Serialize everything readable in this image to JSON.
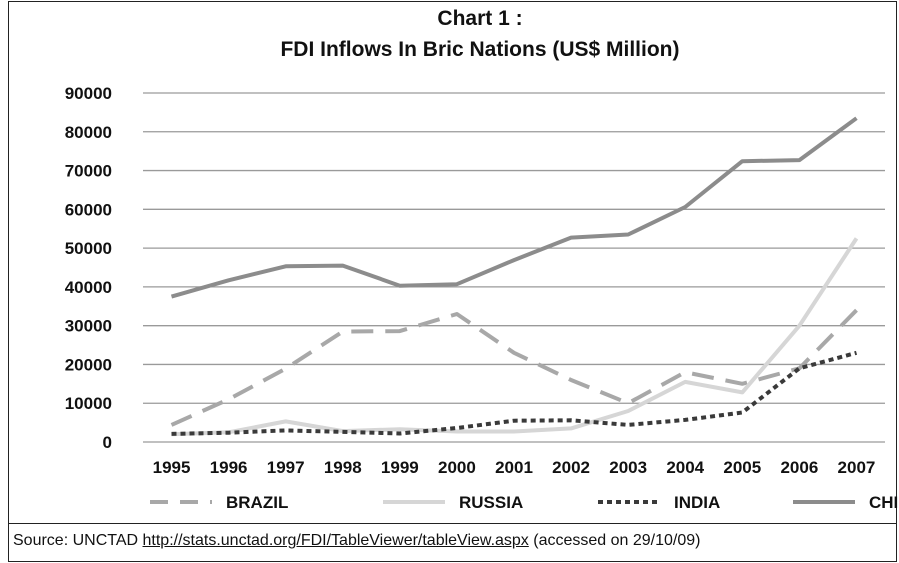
{
  "chart_data": {
    "type": "line",
    "title": [
      "Chart  1 :",
      "FDI Inflows In Bric Nations (US$ Million)"
    ],
    "x": [
      "1995",
      "1996",
      "1997",
      "1998",
      "1999",
      "2000",
      "2001",
      "2002",
      "2003",
      "2004",
      "2005",
      "2006",
      "2007"
    ],
    "ylim": [
      0,
      90000
    ],
    "yticks": [
      "0",
      "10000",
      "20000",
      "30000",
      "40000",
      "50000",
      "60000",
      "70000",
      "80000",
      "90000"
    ],
    "grid": true,
    "legend_position": "bottom",
    "series": [
      {
        "name": "BRAZIL",
        "color": "#a8a8a8",
        "style": "dashed",
        "values": [
          4400,
          11000,
          18900,
          28500,
          28600,
          33000,
          23000,
          16000,
          10000,
          18000,
          15000,
          19000,
          34000
        ]
      },
      {
        "name": "RUSSIA",
        "color": "#d6d6d6",
        "style": "solid",
        "values": [
          2000,
          2500,
          5300,
          2800,
          3300,
          2700,
          2700,
          3500,
          8000,
          15500,
          12800,
          30000,
          52500
        ]
      },
      {
        "name": "INDIA",
        "color": "#3a3a3a",
        "style": "dotted",
        "values": [
          2100,
          2400,
          3000,
          2600,
          2200,
          3600,
          5500,
          5600,
          4400,
          5700,
          7600,
          19000,
          23000
        ]
      },
      {
        "name": "CHINA",
        "color": "#8c8c8c",
        "style": "solid",
        "values": [
          37500,
          41700,
          45300,
          45500,
          40300,
          40700,
          46900,
          52700,
          53500,
          60600,
          72400,
          72700,
          83500
        ]
      }
    ]
  },
  "source": {
    "prefix": "Source: UNCTAD ",
    "link_text": "http://stats.unctad.org/FDI/TableViewer/tableView.aspx",
    "suffix": " (accessed on 29/10/09)"
  }
}
